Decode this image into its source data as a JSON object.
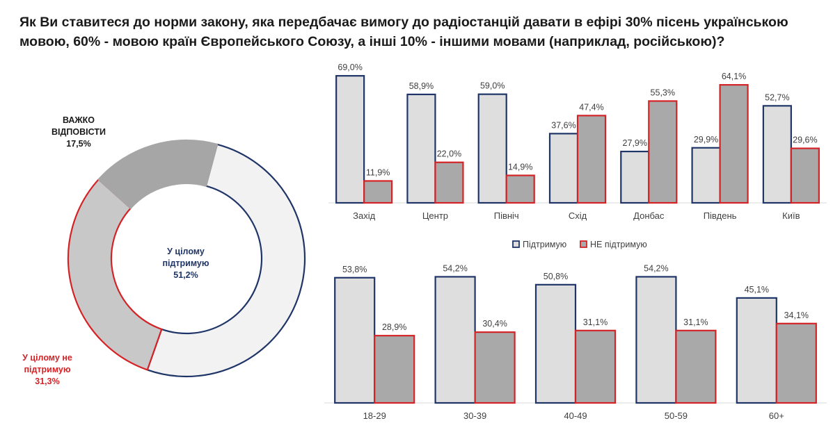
{
  "title": "Як Ви ставитеся до норми закону, яка передбачає вимогу до радіостанцій давати в ефірі 30%  пісень українською мовою, 60%  - мовою  країн Європейського Союзу, а інші 10%  - іншими  мовами (наприклад, російською)?",
  "colors": {
    "support_border": "#1f3568",
    "support_fill": "#dedede",
    "oppose_border": "#d42327",
    "oppose_fill": "#a9a9a9",
    "hard_fill": "#a6a6a6",
    "pie_support_fill": "#f2f2f2",
    "pie_oppose_fill": "#c8c8c8"
  },
  "chart_data": [
    {
      "type": "pie",
      "variant": "donut",
      "slices": [
        {
          "label_lines": [
            "У цілому",
            "підтримую",
            "51,2%"
          ],
          "value": 51.2
        },
        {
          "label_lines": [
            "У цілому не",
            "підтримую",
            "31,3%"
          ],
          "value": 31.3
        },
        {
          "label_lines": [
            "ВАЖКО",
            "ВІДПОВІСТИ",
            "17,5%"
          ],
          "value": 17.5
        }
      ]
    },
    {
      "type": "bar",
      "categories": [
        "Захід",
        "Центр",
        "Північ",
        "Схід",
        "Донбас",
        "Південь",
        "Київ"
      ],
      "series": [
        {
          "name": "Підтримую",
          "values": [
            69.0,
            58.9,
            59.0,
            37.6,
            27.9,
            29.9,
            52.7
          ],
          "labels": [
            "69,0%",
            "58,9%",
            "59,0%",
            "37,6%",
            "27,9%",
            "29,9%",
            "52,7%"
          ]
        },
        {
          "name": "НЕ підтримую",
          "values": [
            11.9,
            22.0,
            14.9,
            47.4,
            55.3,
            64.1,
            29.6
          ],
          "labels": [
            "11,9%",
            "22,0%",
            "14,9%",
            "47,4%",
            "55,3%",
            "64,1%",
            "29,6%"
          ]
        }
      ],
      "legend": "bottom"
    },
    {
      "type": "bar",
      "categories": [
        "18-29",
        "30-39",
        "40-49",
        "50-59",
        "60+"
      ],
      "series": [
        {
          "name": "Підтримую",
          "values": [
            53.8,
            54.2,
            50.8,
            54.2,
            45.1
          ],
          "labels": [
            "53,8%",
            "54,2%",
            "50,8%",
            "54,2%",
            "45,1%"
          ]
        },
        {
          "name": "НЕ підтримую",
          "values": [
            28.9,
            30.4,
            31.1,
            31.1,
            34.1
          ],
          "labels": [
            "28,9%",
            "30,4%",
            "31,1%",
            "31,1%",
            "34,1%"
          ]
        }
      ]
    }
  ]
}
